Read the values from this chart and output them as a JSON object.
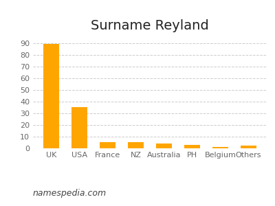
{
  "title": "Surname Reyland",
  "categories": [
    "UK",
    "USA",
    "France",
    "NZ",
    "Australia",
    "PH",
    "Belgium",
    "Others"
  ],
  "values": [
    89,
    35,
    5,
    5.2,
    4,
    3,
    1,
    2.2
  ],
  "bar_color": "#FFA500",
  "background_color": "#ffffff",
  "ylim": [
    0,
    95
  ],
  "yticks": [
    0,
    10,
    20,
    30,
    40,
    50,
    60,
    70,
    80,
    90
  ],
  "grid_color": "#cccccc",
  "watermark": "namespedia.com",
  "title_fontsize": 14,
  "tick_fontsize": 8,
  "watermark_fontsize": 9
}
